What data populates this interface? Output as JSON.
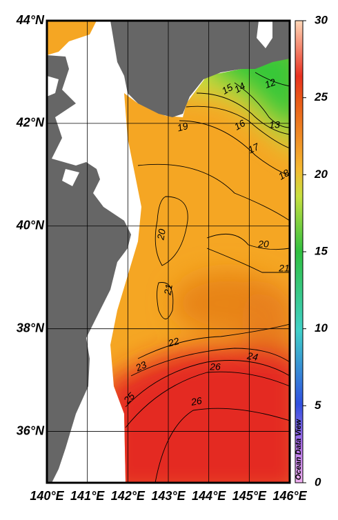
{
  "map": {
    "lonlim": [
      140,
      146
    ],
    "latlim": [
      35,
      44
    ],
    "lon_ticks": [
      {
        "value": 140,
        "label": "140°E"
      },
      {
        "value": 141,
        "label": "141°E"
      },
      {
        "value": 142,
        "label": "142°E"
      },
      {
        "value": 143,
        "label": "143°E"
      },
      {
        "value": 144,
        "label": "144°E"
      },
      {
        "value": 145,
        "label": "145°E"
      },
      {
        "value": 146,
        "label": "146°E"
      }
    ],
    "lat_ticks": [
      {
        "value": 44,
        "label": "44°N"
      },
      {
        "value": 42,
        "label": "42°N"
      },
      {
        "value": 40,
        "label": "40°N"
      },
      {
        "value": 38,
        "label": "38°N"
      },
      {
        "value": 36,
        "label": "36°N"
      }
    ],
    "colorbar": {
      "range": [
        0,
        30
      ],
      "ticks": [
        0,
        5,
        10,
        15,
        20,
        25,
        30
      ]
    },
    "contour_labels": [
      12,
      13,
      14,
      15,
      16,
      17,
      18,
      19,
      20,
      20,
      21,
      21,
      22,
      23,
      24,
      25,
      26,
      26
    ],
    "credit": "Ocean Data View"
  }
}
